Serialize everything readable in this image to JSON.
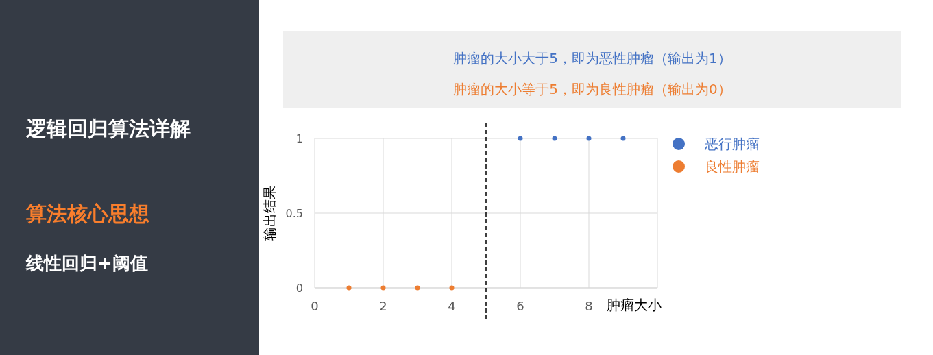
{
  "chart_data": {
    "type": "scatter",
    "title": "逻辑回归算法详解",
    "subtitle": "算法核心思想",
    "annotations": [
      "线性回归+阈值",
      "肿瘤的大小大于5，即为恶性肿瘤（输出为1）",
      "肿瘤的大小等于5，即为良性肿瘤（输出为0）"
    ],
    "xlabel": "肿瘤大小",
    "ylabel": "输出结果",
    "xlim": [
      0,
      10
    ],
    "xticks": [
      0,
      2,
      4,
      6,
      8
    ],
    "ylim": [
      0,
      1
    ],
    "yticks": [
      0,
      0.5,
      1
    ],
    "grid": true,
    "legend": "right",
    "marker": "circle",
    "series": [
      {
        "name": "恶行肿瘤",
        "color": "#4472c4",
        "x": [
          6,
          7,
          8,
          9
        ],
        "values": [
          1,
          1,
          1,
          1
        ]
      },
      {
        "name": "良性肿瘤",
        "color": "#ed7d31",
        "x": [
          1,
          2,
          3,
          4
        ],
        "values": [
          0,
          0,
          0,
          0
        ]
      }
    ],
    "ref_lines": [
      {
        "axis": "x",
        "value": 5,
        "line_style": "dashed",
        "color": "#000000"
      }
    ]
  }
}
